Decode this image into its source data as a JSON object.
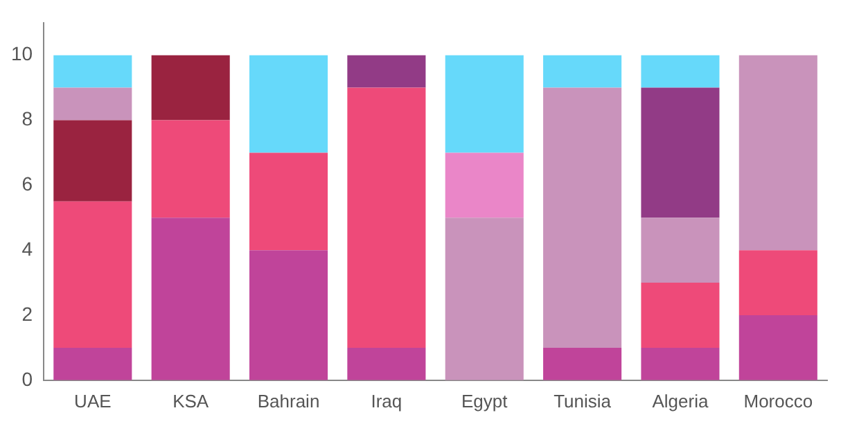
{
  "chart_data": {
    "type": "bar",
    "stacked": true,
    "categories": [
      "UAE",
      "KSA",
      "Bahrain",
      "Iraq",
      "Egypt",
      "Tunisia",
      "Algeria",
      "Morocco"
    ],
    "series": [
      {
        "color": "#c0449a",
        "values": [
          1,
          5,
          4,
          1,
          null,
          1,
          1,
          2
        ]
      },
      {
        "color": "#ee4a79",
        "values": [
          4.5,
          3,
          3,
          8,
          null,
          null,
          2,
          2
        ]
      },
      {
        "color": "#9a2340",
        "values": [
          2.5,
          2,
          null,
          null,
          null,
          null,
          null,
          null
        ]
      },
      {
        "color": "#c993bb",
        "values": [
          1,
          null,
          null,
          null,
          5,
          8,
          2,
          6
        ]
      },
      {
        "color": "#ea86c8",
        "values": [
          null,
          null,
          null,
          null,
          2,
          null,
          null,
          null
        ]
      },
      {
        "color": "#923b86",
        "values": [
          null,
          null,
          null,
          1,
          null,
          null,
          4,
          null
        ]
      },
      {
        "color": "#66d9fa",
        "values": [
          1,
          null,
          3,
          null,
          3,
          1,
          1,
          null
        ]
      }
    ],
    "ylim": [
      0,
      11
    ],
    "yticks": [
      0,
      2,
      4,
      6,
      8,
      10
    ],
    "grid": false,
    "legend": false
  }
}
